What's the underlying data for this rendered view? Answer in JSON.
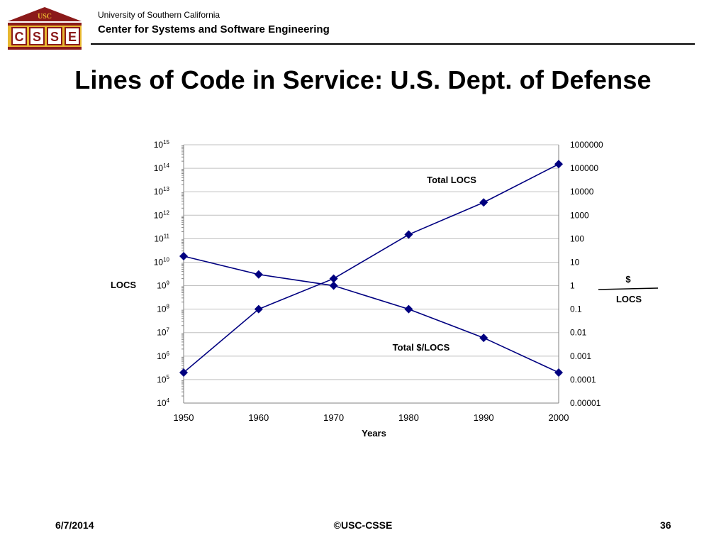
{
  "header": {
    "logo_top": "USC",
    "logo_letters": [
      "C",
      "S",
      "S",
      "E"
    ],
    "university": "University of Southern California",
    "center": "Center for Systems and Software Engineering"
  },
  "slide": {
    "title": "Lines of Code in Service: U.S. Dept. of Defense"
  },
  "footer": {
    "date": "6/7/2014",
    "copyright": "©USC-CSSE",
    "page": "36"
  },
  "colors": {
    "series": "#000080",
    "grid": "#c0c0c0",
    "logo_red": "#8b1a1a",
    "logo_gold": "#e8b830"
  },
  "chart_data": {
    "type": "line",
    "xlabel": "Years",
    "ylabel_left": "LOCS",
    "ylabel_right_numerator": "$",
    "ylabel_right_denominator": "LOCS",
    "x_ticks": [
      1950,
      1960,
      1970,
      1980,
      1990,
      2000
    ],
    "left_axis": {
      "scale": "log10",
      "ylim": [
        10000,
        1000000000000000
      ],
      "tick_exponents": [
        15,
        14,
        13,
        12,
        11,
        10,
        9,
        8,
        7,
        6,
        5,
        4
      ],
      "tick_base": "10"
    },
    "right_axis": {
      "scale": "log10",
      "ylim": [
        1e-05,
        1000000
      ],
      "tick_labels": [
        "1000000",
        "100000",
        "10000",
        "1000",
        "100",
        "10",
        "1",
        "0.1",
        "0.01",
        "0.001",
        "0.0001",
        "0.00001"
      ]
    },
    "series": [
      {
        "name": "Total LOCS",
        "axis": "left",
        "x": [
          1950,
          1960,
          1970,
          1980,
          1990,
          2000
        ],
        "values": [
          200000,
          100000000,
          2000000000,
          150000000000,
          3500000000000,
          150000000000000
        ]
      },
      {
        "name": "Total $/LOCS",
        "axis": "right",
        "x": [
          1950,
          1960,
          1970,
          1980,
          1990,
          2000
        ],
        "values": [
          18,
          3,
          1,
          0.1,
          0.006,
          0.0002
        ]
      }
    ],
    "grid": true,
    "legend": "none (inline labels)"
  }
}
